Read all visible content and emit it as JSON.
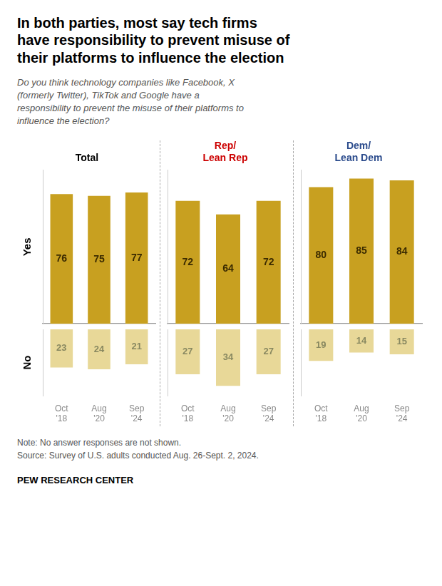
{
  "title": "In both parties, most say tech firms\nhave responsibility to prevent misuse of\ntheir platforms to influence the election",
  "subtitle": "Do you think technology companies like Facebook, X\n(formerly Twitter), TikTok and Google have a\nresponsibility to prevent the misuse of their platforms to\ninfluence the election?",
  "annotations": [
    "Note: No answer responses are not shown.\nSource: Survey of U.S. adults conducted Aug. 26-Sept. 2, 2024.",
    "PEW RESEARCH CENTER"
  ],
  "chart_data": [
    {
      "type": "bar",
      "title": "Total",
      "categories": [
        "Oct\n'18",
        "Aug\n'20",
        "Sep\n'24"
      ],
      "series": [
        {
          "name": "Yes",
          "color": "#c8a020",
          "values": [
            76,
            75,
            77
          ]
        },
        {
          "name": "No",
          "color": "#e8d898",
          "values": [
            23,
            24,
            21
          ],
          "axis": "y2"
        }
      ],
      "ylim": [
        0,
        90
      ],
      "y2lim": [
        0,
        40
      ],
      "data_labels": true,
      "tick_labels": "x",
      "grid": false
    },
    {
      "type": "bar",
      "title": "Rep/\nLean Rep",
      "categories": [
        "Oct\n'18",
        "Aug\n'20",
        "Sep\n'24"
      ],
      "series": [
        {
          "name": "Yes",
          "color": "#c8a020",
          "values": [
            72,
            64,
            72
          ]
        },
        {
          "name": "No",
          "color": "#e8d898",
          "values": [
            27,
            34,
            27
          ],
          "axis": "y2"
        }
      ],
      "ylim": [
        0,
        90
      ],
      "y2lim": [
        0,
        40
      ],
      "data_labels": true,
      "tick_labels": "x",
      "grid": false
    },
    {
      "type": "bar",
      "title": "Dem/\nLean Dem",
      "categories": [
        "Oct\n'18",
        "Aug\n'20",
        "Sep\n'24"
      ],
      "series": [
        {
          "name": "Yes",
          "color": "#c8a020",
          "values": [
            80,
            85,
            84
          ]
        },
        {
          "name": "No",
          "color": "#e8d898",
          "values": [
            19,
            14,
            15
          ],
          "axis": "y2"
        }
      ],
      "ylim": [
        0,
        90
      ],
      "y2lim": [
        0,
        40
      ],
      "data_labels": true,
      "tick_labels": "x",
      "grid": false
    }
  ]
}
